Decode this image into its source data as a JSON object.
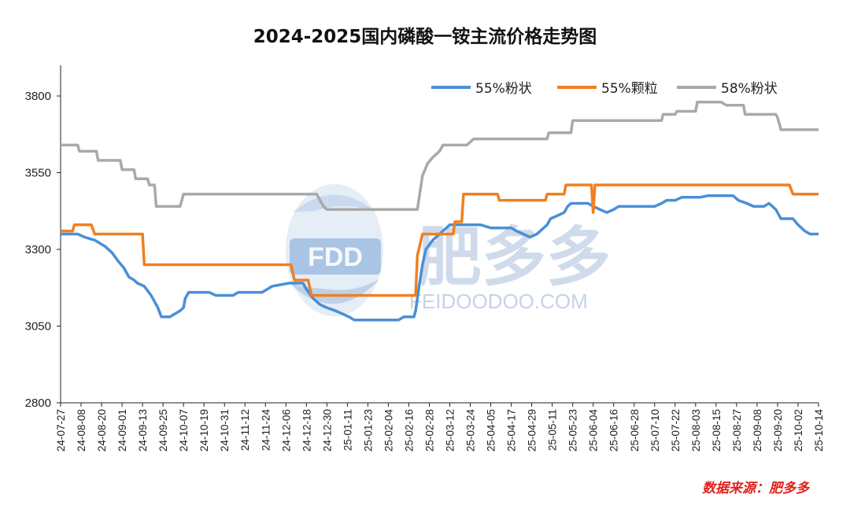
{
  "chart_data": {
    "type": "line",
    "title": "2024-2025国内磷酸一铵主流价格走势图",
    "source": "数据来源：肥多多",
    "watermark": {
      "brand": "肥多多",
      "logo_text": "FDD",
      "url": "FEIDOODOO.COM"
    },
    "ylim": [
      2800,
      3900
    ],
    "yticks": [
      2800,
      3050,
      3300,
      3550,
      3800
    ],
    "grid": false,
    "legend_position": "top-right",
    "x_start": "24-07-27",
    "x_end": "25-10-14",
    "xtick_labels": [
      "24-07-27",
      "24-08-08",
      "24-08-20",
      "24-09-01",
      "24-09-13",
      "24-09-25",
      "24-10-07",
      "24-10-19",
      "24-10-31",
      "24-11-12",
      "24-11-24",
      "24-12-06",
      "24-12-18",
      "24-12-30",
      "25-01-11",
      "25-01-23",
      "25-02-04",
      "25-02-16",
      "25-02-28",
      "25-03-12",
      "25-03-24",
      "25-04-05",
      "25-04-17",
      "25-04-29",
      "25-05-11",
      "25-05-23",
      "25-06-04",
      "25-06-16",
      "25-06-28",
      "25-07-10",
      "25-07-22",
      "25-08-03",
      "25-08-15",
      "25-08-27",
      "25-09-08",
      "25-09-20",
      "25-10-02",
      "25-10-14"
    ],
    "series": [
      {
        "name": "55%粉状",
        "color": "#4a8fd6",
        "points": [
          [
            "24-07-27",
            3350
          ],
          [
            "24-08-06",
            3350
          ],
          [
            "24-08-10",
            3340
          ],
          [
            "24-08-16",
            3330
          ],
          [
            "24-08-22",
            3310
          ],
          [
            "24-08-26",
            3290
          ],
          [
            "24-08-30",
            3260
          ],
          [
            "24-09-02",
            3240
          ],
          [
            "24-09-05",
            3210
          ],
          [
            "24-09-08",
            3200
          ],
          [
            "24-09-10",
            3190
          ],
          [
            "24-09-14",
            3180
          ],
          [
            "24-09-18",
            3150
          ],
          [
            "24-09-22",
            3110
          ],
          [
            "24-09-24",
            3080
          ],
          [
            "24-09-29",
            3080
          ],
          [
            "24-10-02",
            3090
          ],
          [
            "24-10-05",
            3100
          ],
          [
            "24-10-07",
            3110
          ],
          [
            "24-10-08",
            3140
          ],
          [
            "24-10-10",
            3160
          ],
          [
            "24-10-22",
            3160
          ],
          [
            "24-10-26",
            3150
          ],
          [
            "24-11-05",
            3150
          ],
          [
            "24-11-08",
            3160
          ],
          [
            "24-11-22",
            3160
          ],
          [
            "24-11-25",
            3170
          ],
          [
            "24-11-28",
            3180
          ],
          [
            "24-12-08",
            3190
          ],
          [
            "24-12-16",
            3190
          ],
          [
            "24-12-18",
            3170
          ],
          [
            "24-12-22",
            3140
          ],
          [
            "24-12-26",
            3120
          ],
          [
            "24-12-30",
            3110
          ],
          [
            "25-01-04",
            3100
          ],
          [
            "25-01-08",
            3090
          ],
          [
            "25-01-12",
            3080
          ],
          [
            "25-01-15",
            3070
          ],
          [
            "25-02-10",
            3070
          ],
          [
            "25-02-13",
            3080
          ],
          [
            "25-02-19",
            3080
          ],
          [
            "25-02-20",
            3100
          ],
          [
            "25-02-22",
            3180
          ],
          [
            "25-02-24",
            3250
          ],
          [
            "25-02-26",
            3300
          ],
          [
            "25-03-02",
            3330
          ],
          [
            "25-03-08",
            3360
          ],
          [
            "25-03-12",
            3380
          ],
          [
            "25-03-30",
            3380
          ],
          [
            "25-04-05",
            3370
          ],
          [
            "25-04-17",
            3370
          ],
          [
            "25-04-20",
            3360
          ],
          [
            "25-04-24",
            3350
          ],
          [
            "25-04-28",
            3340
          ],
          [
            "25-05-02",
            3350
          ],
          [
            "25-05-04",
            3360
          ],
          [
            "25-05-08",
            3380
          ],
          [
            "25-05-10",
            3400
          ],
          [
            "25-05-14",
            3410
          ],
          [
            "25-05-18",
            3420
          ],
          [
            "25-05-20",
            3440
          ],
          [
            "25-05-22",
            3450
          ],
          [
            "25-06-01",
            3450
          ],
          [
            "25-06-04",
            3440
          ],
          [
            "25-06-08",
            3430
          ],
          [
            "25-06-12",
            3420
          ],
          [
            "25-06-16",
            3430
          ],
          [
            "25-06-19",
            3440
          ],
          [
            "25-07-10",
            3440
          ],
          [
            "25-07-14",
            3450
          ],
          [
            "25-07-17",
            3460
          ],
          [
            "25-07-22",
            3460
          ],
          [
            "25-07-26",
            3470
          ],
          [
            "25-08-06",
            3470
          ],
          [
            "25-08-10",
            3475
          ],
          [
            "25-08-25",
            3475
          ],
          [
            "25-08-28",
            3460
          ],
          [
            "25-09-02",
            3450
          ],
          [
            "25-09-06",
            3440
          ],
          [
            "25-09-12",
            3440
          ],
          [
            "25-09-15",
            3450
          ],
          [
            "25-09-19",
            3430
          ],
          [
            "25-09-22",
            3400
          ],
          [
            "25-09-29",
            3400
          ],
          [
            "25-10-02",
            3380
          ],
          [
            "25-10-06",
            3360
          ],
          [
            "25-10-09",
            3350
          ],
          [
            "25-10-14",
            3350
          ]
        ]
      },
      {
        "name": "55%颗粒",
        "color": "#f07f22",
        "points": [
          [
            "24-07-27",
            3360
          ],
          [
            "24-08-03",
            3360
          ],
          [
            "24-08-04",
            3380
          ],
          [
            "24-08-14",
            3380
          ],
          [
            "24-08-16",
            3350
          ],
          [
            "24-09-13",
            3350
          ],
          [
            "24-09-14",
            3250
          ],
          [
            "24-12-09",
            3250
          ],
          [
            "24-12-11",
            3200
          ],
          [
            "24-12-19",
            3200
          ],
          [
            "24-12-21",
            3150
          ],
          [
            "25-02-20",
            3150
          ],
          [
            "25-02-21",
            3280
          ],
          [
            "25-02-24",
            3350
          ],
          [
            "25-03-14",
            3350
          ],
          [
            "25-03-15",
            3390
          ],
          [
            "25-03-19",
            3390
          ],
          [
            "25-03-20",
            3480
          ],
          [
            "25-04-09",
            3480
          ],
          [
            "25-04-10",
            3460
          ],
          [
            "25-05-07",
            3460
          ],
          [
            "25-05-08",
            3480
          ],
          [
            "25-05-18",
            3480
          ],
          [
            "25-05-19",
            3510
          ],
          [
            "25-06-03",
            3510
          ],
          [
            "25-06-04",
            3420
          ],
          [
            "25-06-05",
            3510
          ],
          [
            "25-09-27",
            3510
          ],
          [
            "25-09-29",
            3480
          ],
          [
            "25-10-14",
            3480
          ]
        ]
      },
      {
        "name": "58%粉状",
        "color": "#a9a9a9",
        "points": [
          [
            "24-07-27",
            3640
          ],
          [
            "24-08-06",
            3640
          ],
          [
            "24-08-07",
            3620
          ],
          [
            "24-08-17",
            3620
          ],
          [
            "24-08-18",
            3590
          ],
          [
            "24-08-31",
            3590
          ],
          [
            "24-09-01",
            3560
          ],
          [
            "24-09-08",
            3560
          ],
          [
            "24-09-09",
            3530
          ],
          [
            "24-09-16",
            3530
          ],
          [
            "24-09-17",
            3510
          ],
          [
            "24-09-20",
            3510
          ],
          [
            "24-09-21",
            3440
          ],
          [
            "24-10-05",
            3440
          ],
          [
            "24-10-07",
            3480
          ],
          [
            "24-12-24",
            3480
          ],
          [
            "24-12-26",
            3460
          ],
          [
            "24-12-28",
            3440
          ],
          [
            "24-12-30",
            3430
          ],
          [
            "25-02-21",
            3430
          ],
          [
            "25-02-24",
            3540
          ],
          [
            "25-02-27",
            3580
          ],
          [
            "25-03-02",
            3600
          ],
          [
            "25-03-06",
            3620
          ],
          [
            "25-03-08",
            3640
          ],
          [
            "25-03-22",
            3640
          ],
          [
            "25-03-26",
            3660
          ],
          [
            "25-05-08",
            3660
          ],
          [
            "25-05-09",
            3680
          ],
          [
            "25-05-22",
            3680
          ],
          [
            "25-05-23",
            3720
          ],
          [
            "25-07-14",
            3720
          ],
          [
            "25-07-15",
            3740
          ],
          [
            "25-07-22",
            3740
          ],
          [
            "25-07-23",
            3750
          ],
          [
            "25-08-03",
            3750
          ],
          [
            "25-08-04",
            3780
          ],
          [
            "25-08-18",
            3780
          ],
          [
            "25-08-21",
            3770
          ],
          [
            "25-08-31",
            3770
          ],
          [
            "25-09-01",
            3740
          ],
          [
            "25-09-19",
            3740
          ],
          [
            "25-09-20",
            3730
          ],
          [
            "25-09-22",
            3690
          ],
          [
            "25-10-14",
            3690
          ]
        ]
      }
    ]
  }
}
